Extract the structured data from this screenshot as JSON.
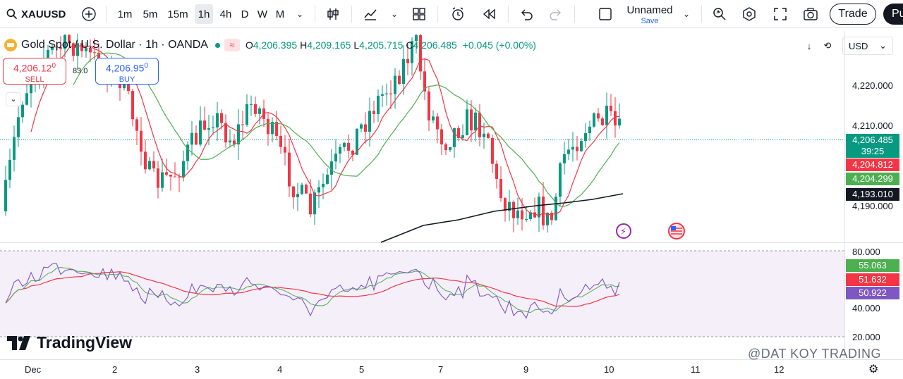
{
  "toolbar": {
    "symbol": "XAUUSD",
    "intervals": [
      "1m",
      "5m",
      "15m",
      "1h",
      "4h",
      "D",
      "W",
      "M"
    ],
    "active_interval": "1h",
    "layout_name": "Unnamed",
    "save_label": "Save",
    "trade_label": "Trade",
    "publish_label": "Pu"
  },
  "legend": {
    "title": "Gold Spot / U.S. Dollar · 1h · OANDA",
    "wave_icon": "≈",
    "o_label": "O",
    "o": "4,206.395",
    "h_label": "H",
    "h": "4,209.165",
    "l_label": "L",
    "l": "4,205.715",
    "c_label": "C",
    "c": "4,206.485",
    "change": "+0.045 (+0.00%)"
  },
  "trade_panel": {
    "sell_price": "4,206.12",
    "sell_price_sup": "0",
    "sell_label": "SELL",
    "spread": "83.0",
    "buy_price": "4,206.95",
    "buy_price_sup": "0",
    "buy_label": "BUY"
  },
  "price_axis": {
    "currency": "USD",
    "ticks": [
      "4,220.000",
      "4,210.000",
      "4,190.000"
    ],
    "badges": [
      {
        "value": "4,206.485",
        "sub": "39:25",
        "color": "#089981"
      },
      {
        "value": "4,204.812",
        "color": "#f23645"
      },
      {
        "value": "4,204.299",
        "color": "#4caf50"
      },
      {
        "value": "4,193.010",
        "color": "#131722"
      }
    ]
  },
  "rsi_axis": {
    "ticks": [
      "80.000",
      "40.000",
      "20.000"
    ],
    "badges": [
      {
        "value": "55.063",
        "color": "#4caf50"
      },
      {
        "value": "51.632",
        "color": "#f23645"
      },
      {
        "value": "50.922",
        "color": "#7e57c2"
      }
    ]
  },
  "time_axis": [
    "Dec",
    "2",
    "3",
    "4",
    "5",
    "7",
    "9",
    "10",
    "11",
    "12"
  ],
  "branding": "TradingView",
  "watermark": "@DAT KOY TRADING",
  "colors": {
    "up": "#089981",
    "down": "#f23645",
    "ma_fast": "#f23645",
    "ma_mid": "#4caf50",
    "ma_slow": "#131722",
    "rsi": "#7e57c2",
    "rsi_bg": "#f5eff9"
  },
  "icons": [
    "plus-circle-icon",
    "candles-icon",
    "indicators-icon",
    "templates-icon",
    "alert-clock-icon",
    "replay-icon",
    "undo-icon",
    "redo-icon",
    "layout-icon",
    "quick-search-icon",
    "settings-icon",
    "fullscreen-icon",
    "camera-icon"
  ]
}
